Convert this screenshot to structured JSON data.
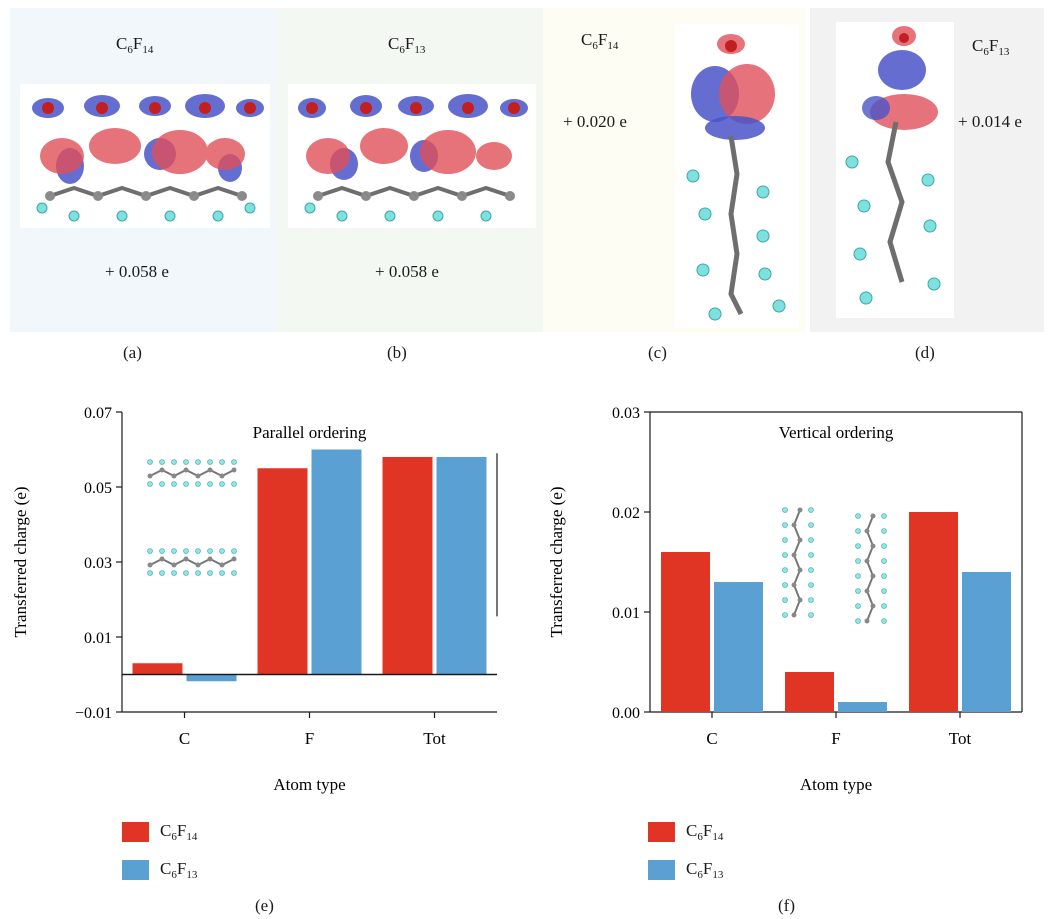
{
  "top_panels": [
    {
      "id": "a",
      "formula": "C6F14",
      "charge": "+ 0.058 e",
      "label": "(a)"
    },
    {
      "id": "b",
      "formula": "C6F13",
      "charge": "+ 0.058 e",
      "label": "(b)"
    },
    {
      "id": "c",
      "formula": "C6F14",
      "charge": "+ 0.020 e",
      "label": "(c)"
    },
    {
      "id": "d",
      "formula": "C6F13",
      "charge": "+ 0.014 e",
      "label": "(d)"
    }
  ],
  "colors": {
    "C6F14": "#e03424",
    "C6F13": "#5aa0d2",
    "axis": "#1a1a1a"
  },
  "legend": [
    {
      "name": "C6F14",
      "color": "#e03424"
    },
    {
      "name": "C6F13",
      "color": "#5aa0d2"
    }
  ],
  "chart_data": [
    {
      "panel": "(e)",
      "type": "bar",
      "annotation": "Parallel ordering",
      "xlabel": "Atom type",
      "ylabel": "Transferred charge (e)",
      "categories": [
        "C",
        "F",
        "Tot"
      ],
      "ylim": [
        -0.01,
        0.07
      ],
      "yticks": [
        -0.01,
        0.01,
        0.03,
        0.05,
        0.07
      ],
      "ytick_labels": [
        "−0.01",
        "0.01",
        "0.03",
        "0.05",
        "0.07"
      ],
      "zero_line": true,
      "series": [
        {
          "name": "C6F14",
          "values": [
            0.003,
            0.055,
            0.058
          ]
        },
        {
          "name": "C6F13",
          "values": [
            -0.0018,
            0.06,
            0.058
          ]
        }
      ],
      "legend_placement": "below"
    },
    {
      "panel": "(f)",
      "type": "bar",
      "annotation": "Vertical ordering",
      "xlabel": "Atom type",
      "ylabel": "Transferred charge (e)",
      "categories": [
        "C",
        "F",
        "Tot"
      ],
      "ylim": [
        0.0,
        0.03
      ],
      "yticks": [
        0.0,
        0.01,
        0.02,
        0.03
      ],
      "ytick_labels": [
        "0.00",
        "0.01",
        "0.02",
        "0.03"
      ],
      "zero_line": false,
      "series": [
        {
          "name": "C6F14",
          "values": [
            0.016,
            0.004,
            0.02
          ]
        },
        {
          "name": "C6F13",
          "values": [
            0.013,
            0.001,
            0.014
          ]
        }
      ],
      "legend_placement": "below"
    }
  ]
}
